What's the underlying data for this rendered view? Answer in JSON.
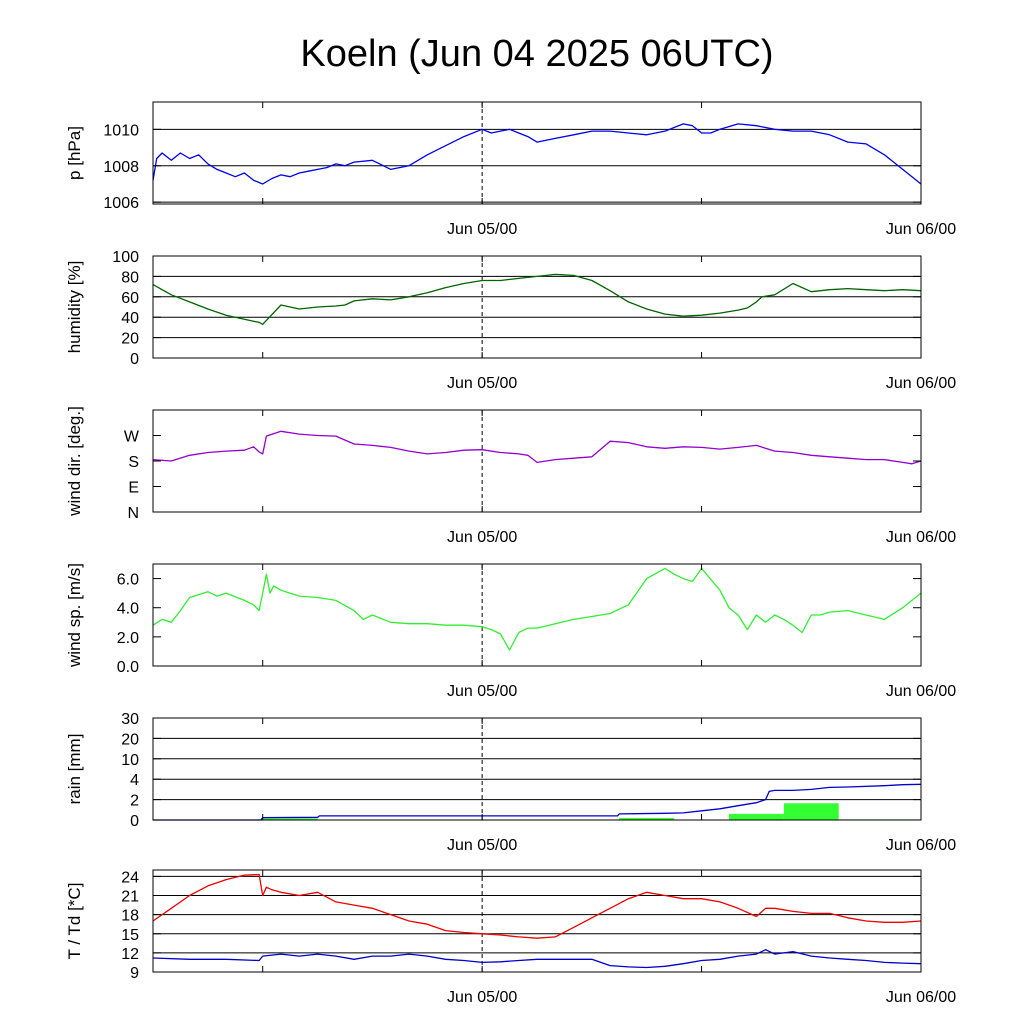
{
  "title": "Koeln (Jun 04 2025 06UTC)",
  "x_tick_labels": [
    "Jun 05/00",
    "Jun 06/00"
  ],
  "colors": {
    "pressure": "#0000ee",
    "humidity": "#006400",
    "wind_dir": "#9400d3",
    "wind_speed": "#33ee33",
    "rain_cumulative": "#0000cc",
    "rain_bars": "#33ff33",
    "temperature": "#ee0000",
    "dewpoint": "#0000cc"
  },
  "chart_data": [
    {
      "type": "line",
      "name": "pressure",
      "ylabel": "p [hPa]",
      "ylim": [
        1005.9,
        1011.5
      ],
      "y_ticks": [
        1006,
        1008,
        1010
      ],
      "y_tick_labels": [
        "1006",
        "1008",
        "1010"
      ],
      "grid_y": [
        1006,
        1008,
        1010
      ],
      "x_range_hours": [
        -18,
        24
      ],
      "series": [
        {
          "x": [
            -18,
            -17.8,
            -17.5,
            -17,
            -16.5,
            -16,
            -15.5,
            -15,
            -14.5,
            -14,
            -13.5,
            -13,
            -12.5,
            -12,
            -11.5,
            -11,
            -10.5,
            -10,
            -9.5,
            -9,
            -8.5,
            -8,
            -7.5,
            -7,
            -6,
            -5,
            -4,
            -3,
            -2,
            -1,
            0,
            0.5,
            1,
            1.5,
            2,
            2.5,
            3,
            4,
            5,
            6,
            7,
            8,
            9,
            10,
            11,
            11.5,
            12,
            12.5,
            13,
            14,
            15,
            16,
            17,
            18,
            19,
            20,
            21,
            22,
            23,
            24
          ],
          "y": [
            1007.2,
            1008.4,
            1008.7,
            1008.3,
            1008.7,
            1008.4,
            1008.6,
            1008.1,
            1007.8,
            1007.6,
            1007.4,
            1007.6,
            1007.2,
            1007.0,
            1007.3,
            1007.5,
            1007.4,
            1007.6,
            1007.7,
            1007.8,
            1007.9,
            1008.1,
            1008.0,
            1008.2,
            1008.3,
            1007.8,
            1008.0,
            1008.6,
            1009.1,
            1009.6,
            1010.0,
            1009.8,
            1009.9,
            1010.0,
            1009.8,
            1009.6,
            1009.3,
            1009.5,
            1009.7,
            1009.9,
            1009.9,
            1009.8,
            1009.7,
            1009.9,
            1010.3,
            1010.2,
            1009.8,
            1009.8,
            1010.0,
            1010.3,
            1010.2,
            1010.0,
            1009.9,
            1009.9,
            1009.7,
            1009.3,
            1009.2,
            1008.6,
            1007.8,
            1007.0
          ]
        }
      ]
    },
    {
      "type": "line",
      "name": "humidity",
      "ylabel": "humidity [%]",
      "ylim": [
        0,
        100
      ],
      "y_ticks": [
        0,
        20,
        40,
        60,
        80,
        100
      ],
      "y_tick_labels": [
        "0",
        "20",
        "40",
        "60",
        "80",
        "100"
      ],
      "grid_y": [
        20,
        40,
        60,
        80
      ],
      "x_range_hours": [
        -18,
        24
      ],
      "series": [
        {
          "x": [
            -18,
            -17,
            -16,
            -15,
            -14,
            -13,
            -12.5,
            -12.2,
            -12,
            -11,
            -10,
            -9,
            -8,
            -7.5,
            -7,
            -6,
            -5,
            -4,
            -3,
            -2,
            -1,
            0,
            1,
            2,
            3,
            4,
            5,
            6,
            7,
            8,
            9,
            10,
            11,
            12,
            13,
            14,
            14.5,
            15,
            15.3,
            16,
            17,
            18,
            19,
            20,
            21,
            22,
            23,
            24
          ],
          "y": [
            72,
            62,
            55,
            48,
            42,
            38,
            36,
            35,
            33,
            52,
            48,
            50,
            51,
            52,
            56,
            58,
            57,
            60,
            64,
            69,
            73,
            76,
            76,
            78,
            80,
            82,
            81,
            76,
            66,
            55,
            48,
            43,
            41,
            42,
            44,
            47,
            49,
            55,
            60,
            62,
            73,
            65,
            67,
            68,
            67,
            66,
            67,
            66
          ]
        }
      ]
    },
    {
      "type": "line",
      "name": "wind direction",
      "ylabel": "wind dir. [deg.]",
      "ylim": [
        0,
        360
      ],
      "y_ticks": [
        0,
        90,
        180,
        270
      ],
      "y_tick_labels": [
        "N",
        "E",
        "S",
        "W"
      ],
      "grid_y": [],
      "x_range_hours": [
        -18,
        24
      ],
      "series": [
        {
          "x": [
            -18,
            -17,
            -16,
            -15,
            -14,
            -13,
            -12.5,
            -12.2,
            -12,
            -11.8,
            -11,
            -10,
            -9,
            -8,
            -7,
            -6,
            -5,
            -4,
            -3,
            -2,
            -1,
            0,
            1,
            2,
            2.5,
            3,
            4,
            5,
            6,
            7,
            8,
            9,
            10,
            11,
            12,
            13,
            14,
            15,
            16,
            17,
            18,
            19,
            20,
            21,
            22,
            23,
            23.5,
            24
          ],
          "y": [
            185,
            180,
            200,
            210,
            215,
            218,
            230,
            212,
            205,
            268,
            285,
            275,
            270,
            268,
            240,
            235,
            228,
            215,
            205,
            210,
            218,
            220,
            210,
            205,
            200,
            175,
            185,
            190,
            195,
            250,
            245,
            230,
            225,
            230,
            228,
            222,
            228,
            235,
            215,
            210,
            200,
            195,
            190,
            185,
            185,
            175,
            170,
            180
          ]
        }
      ]
    },
    {
      "type": "line",
      "name": "wind speed",
      "ylabel": "wind sp. [m/s]",
      "ylim": [
        0,
        7
      ],
      "y_ticks": [
        0,
        2,
        4,
        6
      ],
      "y_tick_labels": [
        "0.0",
        "2.0",
        "4.0",
        "6.0"
      ],
      "grid_y": [],
      "x_range_hours": [
        -18,
        24
      ],
      "series": [
        {
          "x": [
            -18,
            -17.5,
            -17,
            -16.5,
            -16,
            -15,
            -14.5,
            -14,
            -13,
            -12.5,
            -12.2,
            -12,
            -11.8,
            -11.6,
            -11.4,
            -11,
            -10,
            -9,
            -8,
            -7,
            -6.5,
            -6,
            -5,
            -4,
            -3,
            -2,
            -1,
            0,
            0.5,
            1,
            1.5,
            2,
            2.5,
            3,
            4,
            5,
            6,
            7,
            8,
            9,
            10,
            10.5,
            11,
            11.5,
            12,
            13,
            13.5,
            14,
            14.5,
            15,
            15.5,
            16,
            16.5,
            17,
            17.5,
            18,
            18.5,
            19,
            20,
            21,
            22,
            23,
            24
          ],
          "y": [
            2.8,
            3.2,
            3.0,
            3.8,
            4.7,
            5.1,
            4.8,
            5.0,
            4.5,
            4.2,
            3.8,
            5.0,
            6.3,
            5.0,
            5.5,
            5.2,
            4.8,
            4.7,
            4.5,
            3.8,
            3.2,
            3.5,
            3.0,
            2.9,
            2.9,
            2.8,
            2.8,
            2.7,
            2.5,
            2.2,
            1.1,
            2.3,
            2.6,
            2.6,
            2.9,
            3.2,
            3.4,
            3.6,
            4.2,
            6.0,
            6.7,
            6.3,
            6.0,
            5.8,
            6.7,
            5.2,
            4.0,
            3.5,
            2.5,
            3.5,
            3.0,
            3.5,
            3.2,
            2.8,
            2.3,
            3.5,
            3.5,
            3.7,
            3.8,
            3.5,
            3.2,
            4.0,
            5.0
          ]
        }
      ]
    },
    {
      "type": "bar",
      "name": "rain",
      "ylabel": "rain [mm]",
      "ylim": [
        0,
        5
      ],
      "y_ticks": [
        0,
        1,
        2,
        3,
        4,
        5
      ],
      "y_tick_labels": [
        "0",
        "2",
        "4",
        "10",
        "20",
        "30"
      ],
      "grid_y": [
        1,
        2,
        3,
        4,
        5
      ],
      "x_range_hours": [
        -18,
        24
      ],
      "bars": [
        {
          "x0": -12,
          "x1": -9,
          "y": 0.08
        },
        {
          "x0": 7.5,
          "x1": 10.5,
          "y": 0.1
        },
        {
          "x0": 13.5,
          "x1": 16.5,
          "y": 0.3
        },
        {
          "x0": 16.5,
          "x1": 19.5,
          "y": 0.82
        },
        {
          "x0": 19.5,
          "x1": 24,
          "y": 0.03
        }
      ],
      "series": [
        {
          "x": [
            -18,
            -12.1,
            -12,
            -9,
            -8.9,
            0,
            7.4,
            7.5,
            10,
            11,
            12,
            13,
            14,
            15,
            15.5,
            15.7,
            16,
            17,
            18,
            19,
            20,
            22,
            23,
            24
          ],
          "y": [
            0,
            0,
            0.12,
            0.13,
            0.2,
            0.2,
            0.2,
            0.3,
            0.33,
            0.35,
            0.45,
            0.55,
            0.7,
            0.85,
            1.0,
            1.4,
            1.45,
            1.45,
            1.5,
            1.6,
            1.62,
            1.68,
            1.73,
            1.75
          ]
        }
      ]
    },
    {
      "type": "line",
      "name": "temperature and dewpoint",
      "ylabel": "T / Td [*C]",
      "ylim": [
        9,
        25
      ],
      "y_ticks": [
        9,
        12,
        15,
        18,
        21,
        24
      ],
      "y_tick_labels": [
        "9",
        "12",
        "15",
        "18",
        "21",
        "24"
      ],
      "grid_y": [
        12,
        15,
        18,
        21,
        24
      ],
      "x_range_hours": [
        -18,
        24
      ],
      "series": [
        {
          "name": "T",
          "x": [
            -18,
            -17,
            -16,
            -15,
            -14,
            -13,
            -12.2,
            -12,
            -11.8,
            -11.5,
            -11,
            -10,
            -9,
            -8,
            -7,
            -6,
            -5,
            -4,
            -3,
            -2,
            -1,
            0,
            1,
            2,
            3,
            4,
            5,
            6,
            7,
            8,
            9,
            10,
            11,
            12,
            13,
            14,
            15,
            15.5,
            16,
            17,
            18,
            19,
            20,
            21,
            22,
            23,
            24
          ],
          "y": [
            17.0,
            19.0,
            21.0,
            22.5,
            23.5,
            24.2,
            24.3,
            21.0,
            22.3,
            21.9,
            21.5,
            21.0,
            21.5,
            20.0,
            19.5,
            19.0,
            18.0,
            17.0,
            16.5,
            15.5,
            15.2,
            15.0,
            14.8,
            14.5,
            14.3,
            14.5,
            16.0,
            17.5,
            19.0,
            20.5,
            21.5,
            21.0,
            20.5,
            20.5,
            20.0,
            19.0,
            17.7,
            19.0,
            19.0,
            18.5,
            18.2,
            18.2,
            17.5,
            17.0,
            16.8,
            16.8,
            17.0
          ]
        },
        {
          "name": "Td",
          "x": [
            -18,
            -16,
            -14,
            -12.2,
            -12,
            -11,
            -10,
            -9,
            -8,
            -7,
            -6,
            -5,
            -4,
            -3,
            -2,
            -1,
            0,
            1,
            2,
            3,
            4,
            5,
            6,
            7,
            8,
            9,
            10,
            11,
            12,
            13,
            14,
            15,
            15.5,
            16,
            17,
            18,
            19,
            20,
            21,
            22,
            23,
            24
          ],
          "y": [
            11.2,
            11.0,
            11.0,
            10.8,
            11.5,
            11.8,
            11.5,
            11.8,
            11.5,
            11.0,
            11.5,
            11.5,
            11.8,
            11.5,
            11.0,
            10.8,
            10.5,
            10.6,
            10.8,
            11.0,
            11.0,
            11.0,
            11.0,
            10.0,
            9.8,
            9.7,
            9.9,
            10.3,
            10.8,
            11.0,
            11.5,
            11.8,
            12.5,
            11.8,
            12.2,
            11.5,
            11.2,
            11.0,
            10.8,
            10.5,
            10.4,
            10.3
          ]
        }
      ]
    }
  ]
}
